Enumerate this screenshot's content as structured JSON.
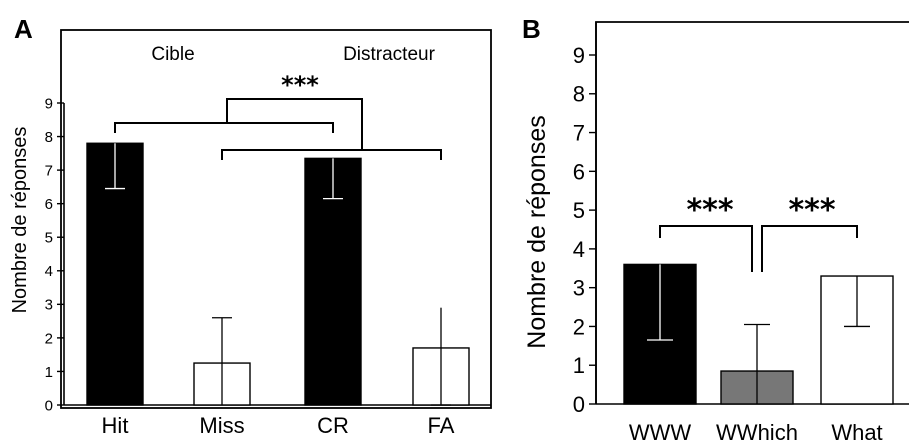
{
  "chart_data": [
    {
      "panel": "A",
      "type": "bar",
      "categories": [
        "Hit",
        "Miss",
        "CR",
        "FA"
      ],
      "values": [
        7.8,
        1.25,
        7.35,
        1.7
      ],
      "error_low": [
        6.45,
        0,
        6.15,
        0
      ],
      "error_high": [
        7.8,
        2.6,
        7.35,
        2.9
      ],
      "bar_colors": [
        "#000000",
        "#ffffff",
        "#000000",
        "#ffffff"
      ],
      "ylabel": "Nombre de réponses",
      "ylim": [
        0,
        9
      ],
      "yticks": [
        0,
        1,
        2,
        3,
        4,
        5,
        6,
        7,
        8,
        9
      ],
      "group_labels": [
        "Cible",
        "Distracteur"
      ],
      "significance": "***"
    },
    {
      "panel": "B",
      "type": "bar",
      "categories": [
        "WWW",
        "WWhich",
        "What"
      ],
      "values": [
        3.6,
        0.85,
        3.3
      ],
      "error_low": [
        1.65,
        0,
        2.0
      ],
      "error_high": [
        3.6,
        2.05,
        3.3
      ],
      "bar_colors": [
        "#000000",
        "#777777",
        "#ffffff"
      ],
      "ylabel": "Nombre de réponses",
      "ylim": [
        0,
        9
      ],
      "yticks": [
        0,
        1,
        2,
        3,
        4,
        5,
        6,
        7,
        8,
        9
      ],
      "significance": [
        "***",
        "***"
      ]
    }
  ]
}
